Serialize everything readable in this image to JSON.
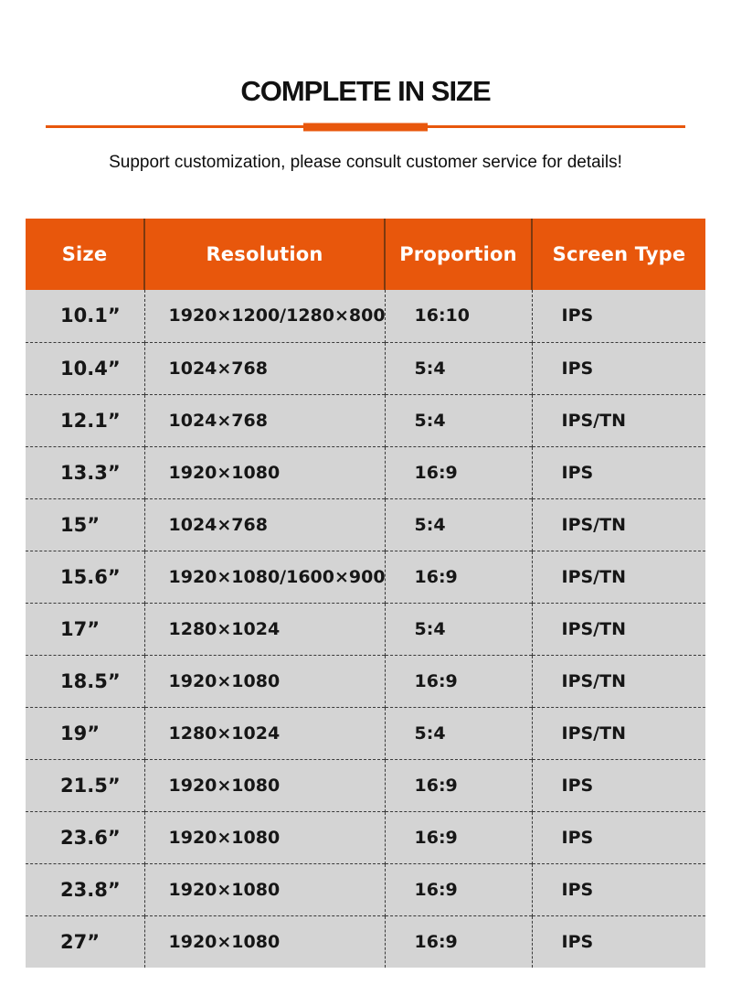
{
  "page": {
    "title": "COMPLETE IN SIZE",
    "subtitle": "Support customization, please consult customer service for details!"
  },
  "colors": {
    "accent_orange": "#e8570c",
    "header_divider": "#7c3a10",
    "row_gray": "#d4d4d4",
    "dash_color": "#3a3a3a",
    "text_dark": "#161616"
  },
  "chart_data": {
    "type": "table",
    "title": "COMPLETE IN SIZE",
    "columns": [
      "Size",
      "Resolution",
      "Proportion",
      "Screen Type"
    ],
    "rows": [
      [
        "10.1”",
        "1920×1200/1280×800",
        "16:10",
        "IPS"
      ],
      [
        "10.4”",
        "1024×768",
        "5:4",
        "IPS"
      ],
      [
        "12.1”",
        "1024×768",
        "5:4",
        "IPS/TN"
      ],
      [
        "13.3”",
        "1920×1080",
        "16:9",
        "IPS"
      ],
      [
        "15”",
        "1024×768",
        "5:4",
        "IPS/TN"
      ],
      [
        "15.6”",
        "1920×1080/1600×900",
        "16:9",
        "IPS/TN"
      ],
      [
        "17”",
        "1280×1024",
        "5:4",
        "IPS/TN"
      ],
      [
        "18.5”",
        "1920×1080",
        "16:9",
        "IPS/TN"
      ],
      [
        "19”",
        "1280×1024",
        "5:4",
        "IPS/TN"
      ],
      [
        "21.5”",
        "1920×1080",
        "16:9",
        "IPS"
      ],
      [
        "23.6”",
        "1920×1080",
        "16:9",
        "IPS"
      ],
      [
        "23.8”",
        "1920×1080",
        "16:9",
        "IPS"
      ],
      [
        "27”",
        "1920×1080",
        "16:9",
        "IPS"
      ]
    ]
  }
}
